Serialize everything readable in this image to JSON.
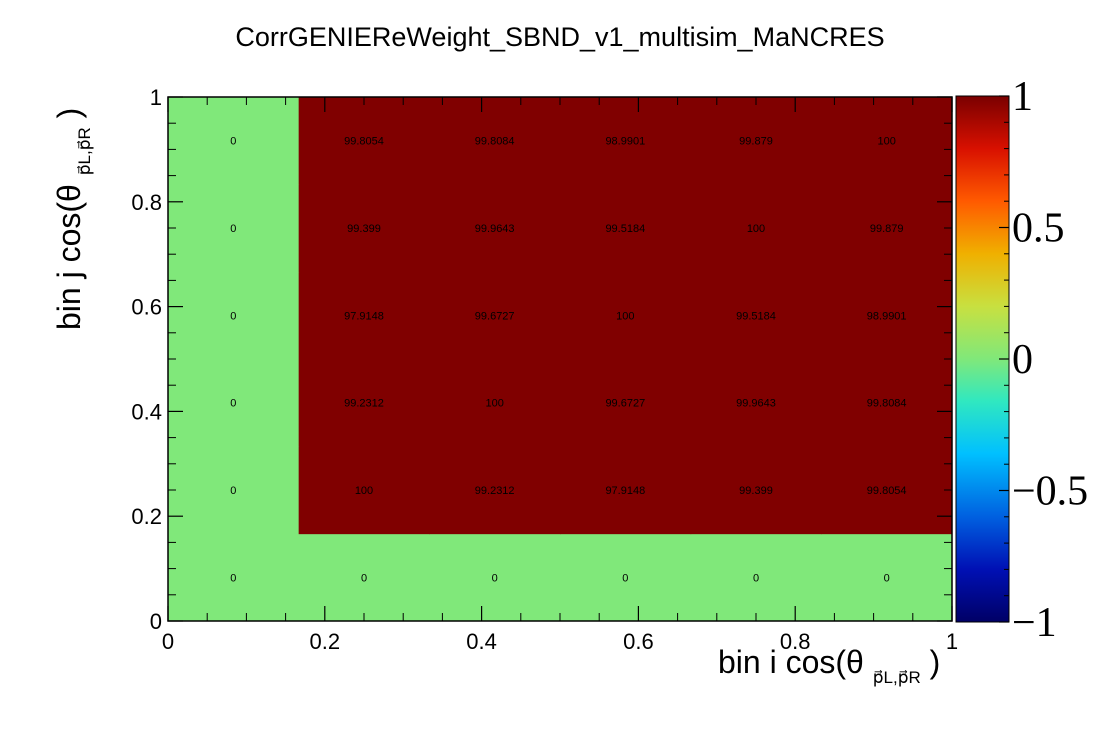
{
  "chart_data": {
    "type": "heatmap",
    "title": "CorrGENIEReWeight_SBND_v1_multisim_MaNCRES",
    "xlabel": {
      "main": "bin i cos(θ",
      "sub": "p⃗_L,p⃗_R",
      "sub_display": "p⃗L,p⃗R",
      "close": ")"
    },
    "ylabel": {
      "main": "bin j cos(θ",
      "sub": "p⃗_L,p⃗_R",
      "sub_display": "p⃗L,p⃗R",
      "close": ")"
    },
    "xlim": [
      0,
      1
    ],
    "ylim": [
      0,
      1
    ],
    "zlim": [
      -1,
      1
    ],
    "x_ticks": [
      "0",
      "0.2",
      "0.4",
      "0.6",
      "0.8",
      "1"
    ],
    "y_ticks": [
      "0",
      "0.2",
      "0.4",
      "0.6",
      "0.8",
      "1"
    ],
    "palette_ticks": [
      "1",
      "0.5",
      "0",
      "−0.5",
      "−1"
    ],
    "colormap": "rainbow",
    "bins_x": 6,
    "bins_y": 6,
    "cell_text": [
      [
        "0",
        "0",
        "0",
        "0",
        "0",
        "0"
      ],
      [
        "0",
        "100",
        "99.2312",
        "97.9148",
        "99.399",
        "99.8054"
      ],
      [
        "0",
        "99.2312",
        "100",
        "99.6727",
        "99.9643",
        "99.8084"
      ],
      [
        "0",
        "97.9148",
        "99.6727",
        "100",
        "99.5184",
        "98.9901"
      ],
      [
        "0",
        "99.399",
        "99.9643",
        "99.5184",
        "100",
        "99.879"
      ],
      [
        "0",
        "99.8054",
        "99.8084",
        "98.9901",
        "99.879",
        "100"
      ]
    ],
    "colors": {
      "zero": "#80e87a",
      "max": "#800000",
      "frame": "#000000"
    }
  }
}
